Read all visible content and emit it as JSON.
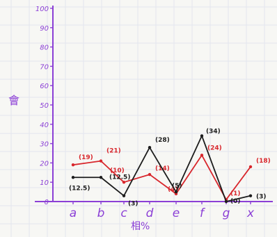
{
  "chart_data": {
    "type": "line",
    "title": "",
    "xlabel": "相%",
    "ylabel": "會",
    "ylim": [
      0,
      100
    ],
    "y_ticks": [
      {
        "value": 0,
        "label": "0"
      },
      {
        "value": 10,
        "label": "10"
      },
      {
        "value": 20,
        "label": "20"
      },
      {
        "value": 30,
        "label": "30"
      },
      {
        "value": 40,
        "label": "40"
      },
      {
        "value": 50,
        "label": "50"
      },
      {
        "value": 60,
        "label": "60"
      },
      {
        "value": 70,
        "label": "70"
      },
      {
        "value": 80,
        "label": "80"
      },
      {
        "value": 90,
        "label": "90"
      },
      {
        "value": 100,
        "label": "100"
      }
    ],
    "categories": [
      "a",
      "b",
      "c",
      "d",
      "e",
      "f",
      "g",
      "x"
    ],
    "series": [
      {
        "color": "#d8262c",
        "values": [
          19,
          21,
          10,
          14,
          4,
          24,
          1,
          18
        ],
        "labels": [
          "(19)",
          "(21)",
          "(10)",
          "(14)",
          "(4)",
          "(24)",
          "(1)",
          "(18)"
        ]
      },
      {
        "color": "#1c1c1c",
        "values": [
          12.5,
          12.5,
          3,
          28,
          5,
          34,
          0,
          3
        ],
        "labels": [
          "(12.5)",
          "(12.5)",
          "(3)",
          "(28)",
          "(5)",
          "(34)",
          "(0)",
          "(3)"
        ]
      }
    ],
    "grid": true,
    "legend": "none"
  }
}
